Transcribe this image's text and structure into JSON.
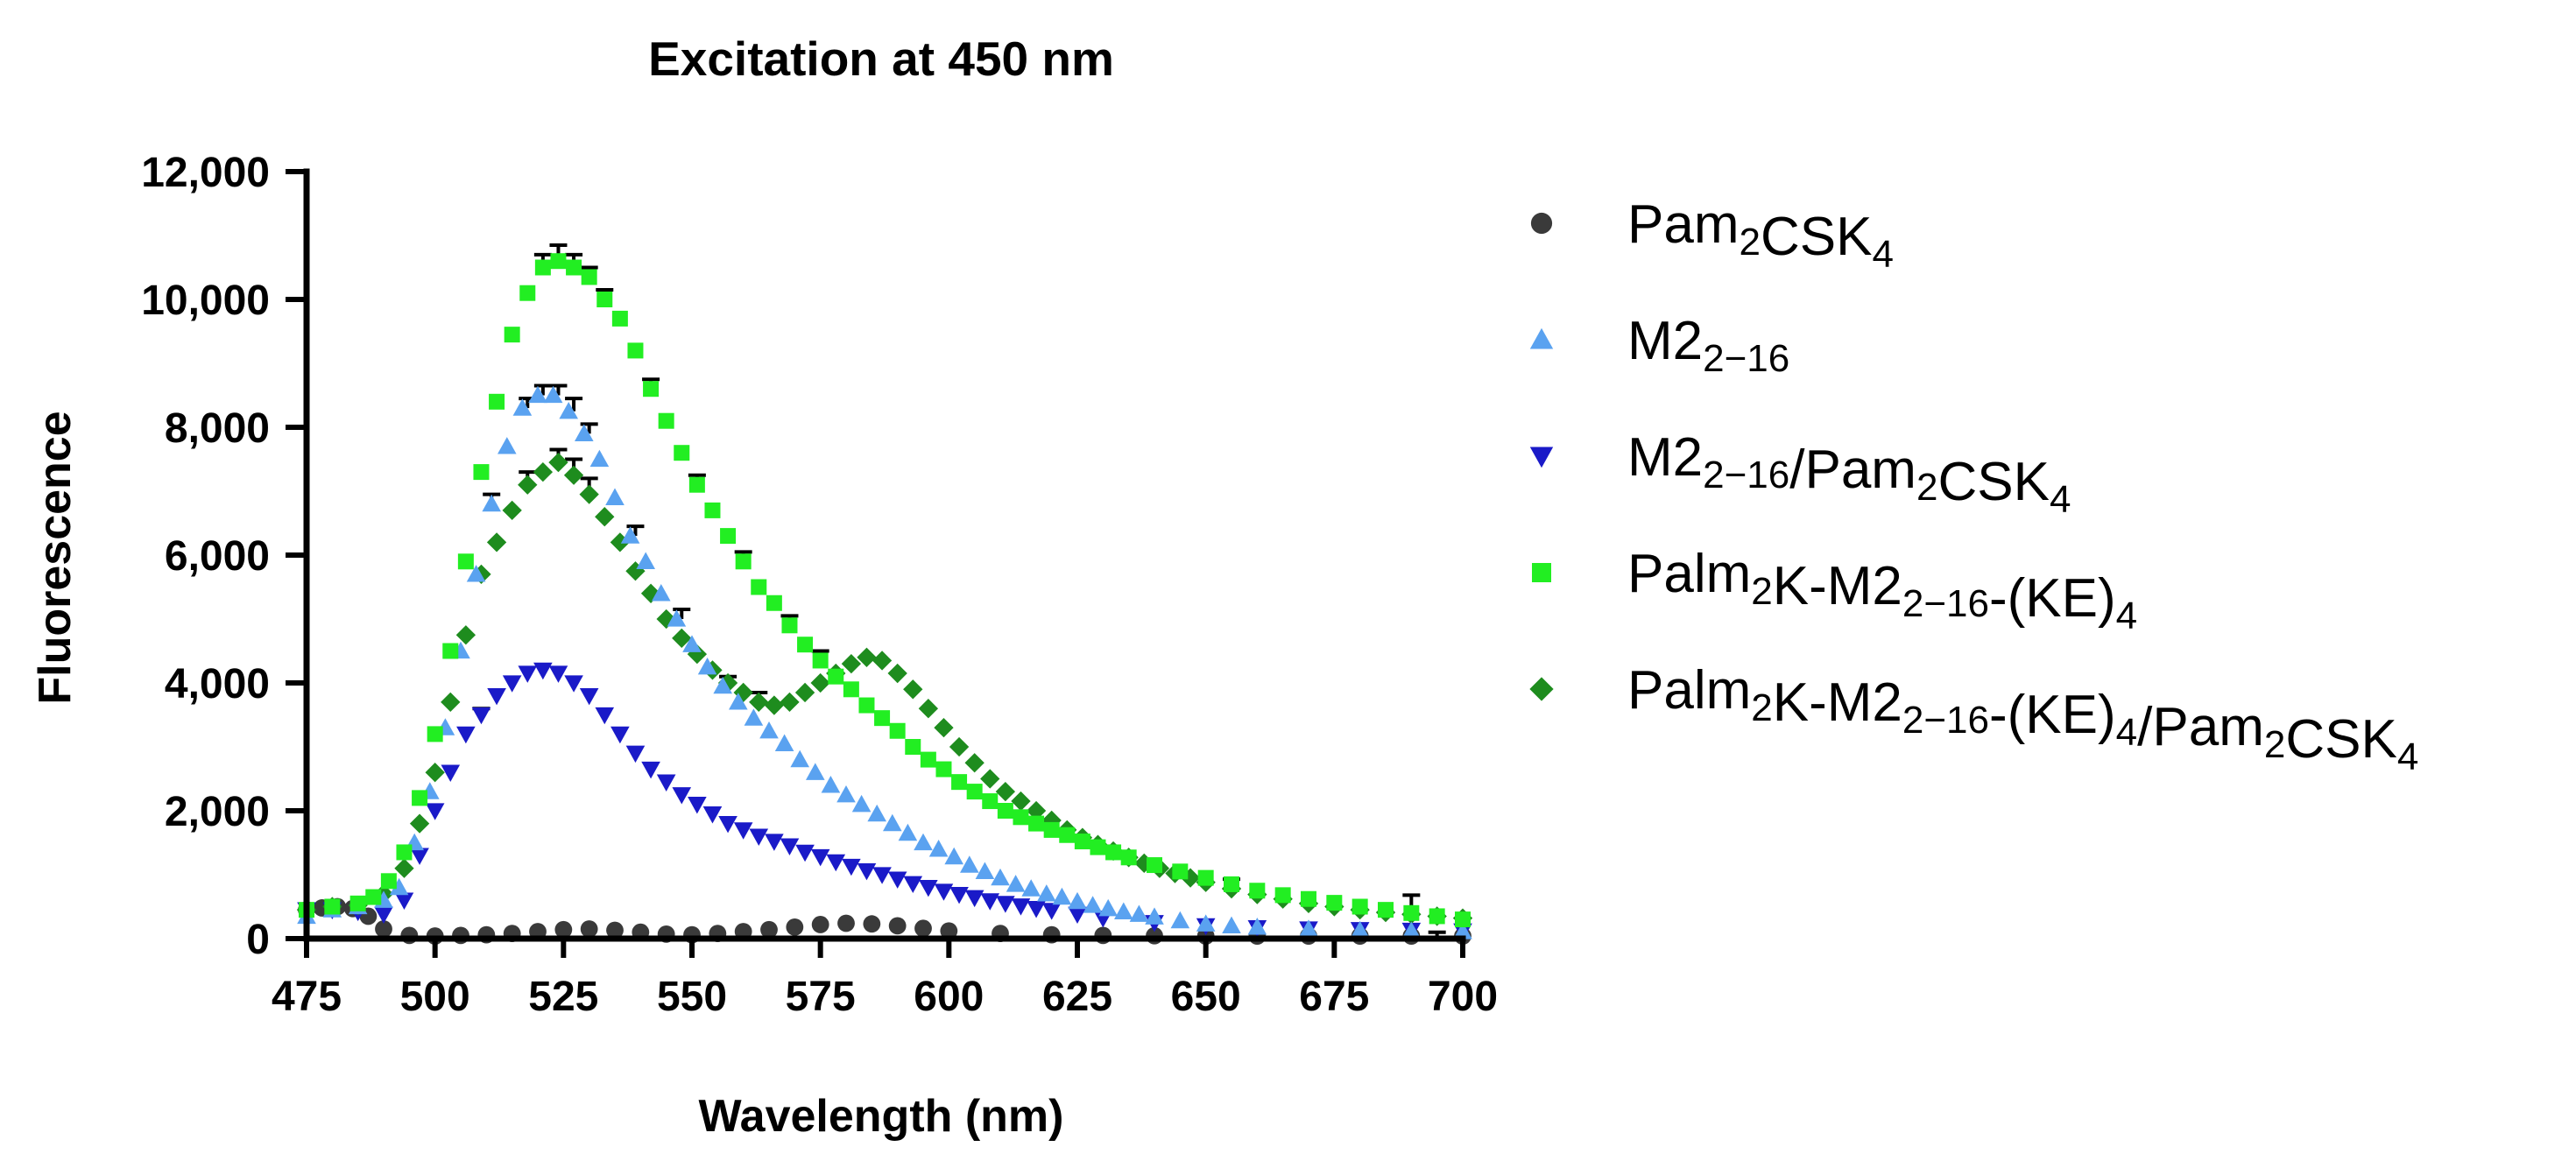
{
  "chart_data": {
    "type": "scatter",
    "title": "Excitation at 450 nm",
    "xlabel": "Wavelength (nm)",
    "ylabel": "Fluorescence",
    "xlim": [
      475,
      700
    ],
    "ylim": [
      0,
      12000
    ],
    "x_ticks": [
      475,
      500,
      525,
      550,
      575,
      600,
      625,
      650,
      675,
      700
    ],
    "y_ticks": [
      0,
      2000,
      4000,
      6000,
      8000,
      10000,
      12000
    ],
    "x_tick_labels": [
      "475",
      "500",
      "525",
      "550",
      "575",
      "600",
      "625",
      "650",
      "675",
      "700"
    ],
    "y_tick_labels": [
      "0",
      "2,000",
      "4,000",
      "6,000",
      "8,000",
      "10,000",
      "12,000"
    ],
    "grid": false,
    "legend_position": "right",
    "series": [
      {
        "name": "Pam2CSK4",
        "legend_parts": [
          {
            "t": "Pam"
          },
          {
            "t": "2",
            "sub": true
          },
          {
            "t": "CSK"
          },
          {
            "t": "4",
            "sub": true
          }
        ],
        "color": "#3a3a3a",
        "marker": "circle",
        "x": [
          475,
          478,
          481,
          484,
          487,
          490,
          495,
          500,
          505,
          510,
          515,
          520,
          525,
          530,
          535,
          540,
          545,
          550,
          555,
          560,
          565,
          570,
          575,
          580,
          585,
          590,
          595,
          600,
          610,
          620,
          630,
          640,
          650,
          660,
          670,
          680,
          690,
          700
        ],
        "y": [
          450,
          480,
          500,
          470,
          350,
          150,
          50,
          40,
          50,
          60,
          80,
          110,
          140,
          150,
          130,
          100,
          70,
          60,
          80,
          110,
          140,
          180,
          220,
          240,
          230,
          200,
          160,
          120,
          80,
          60,
          50,
          45,
          40,
          40,
          40,
          40,
          40,
          40
        ]
      },
      {
        "name": "M22-16",
        "legend_parts": [
          {
            "t": "M2"
          },
          {
            "t": "2−16",
            "sub": true
          }
        ],
        "color": "#5aa2f0",
        "marker": "triangle-up",
        "x": [
          475,
          480,
          485,
          490,
          493,
          496,
          499,
          502,
          505,
          508,
          511,
          514,
          517,
          520,
          523,
          526,
          529,
          532,
          535,
          538,
          541,
          544,
          547,
          550,
          553,
          556,
          559,
          562,
          565,
          568,
          571,
          574,
          577,
          580,
          583,
          586,
          589,
          592,
          595,
          598,
          601,
          604,
          607,
          610,
          613,
          616,
          619,
          622,
          625,
          628,
          631,
          634,
          637,
          640,
          645,
          650,
          655,
          660,
          670,
          680,
          690,
          700
        ],
        "y": [
          350,
          450,
          500,
          600,
          800,
          1500,
          2300,
          3300,
          4500,
          5700,
          6800,
          7700,
          8300,
          8500,
          8500,
          8250,
          7900,
          7500,
          6900,
          6300,
          5900,
          5400,
          5000,
          4600,
          4250,
          3950,
          3700,
          3450,
          3250,
          3050,
          2800,
          2600,
          2400,
          2250,
          2100,
          1950,
          1800,
          1650,
          1500,
          1400,
          1280,
          1150,
          1050,
          950,
          850,
          780,
          700,
          650,
          580,
          520,
          470,
          420,
          380,
          340,
          280,
          230,
          200,
          180,
          150,
          130,
          120,
          110
        ]
      },
      {
        "name": "M22-16/Pam2CSK4",
        "legend_parts": [
          {
            "t": "M2"
          },
          {
            "t": "2−16",
            "sub": true
          },
          {
            "t": "/Pam"
          },
          {
            "t": "2",
            "sub": true
          },
          {
            "t": "CSK"
          },
          {
            "t": "4",
            "sub": true
          }
        ],
        "color": "#1a1ac8",
        "marker": "triangle-down",
        "x": [
          475,
          480,
          485,
          490,
          494,
          497,
          500,
          503,
          506,
          509,
          512,
          515,
          518,
          521,
          524,
          527,
          530,
          533,
          536,
          539,
          542,
          545,
          548,
          551,
          554,
          557,
          560,
          563,
          566,
          569,
          572,
          575,
          578,
          581,
          584,
          587,
          590,
          593,
          596,
          599,
          602,
          605,
          608,
          611,
          614,
          617,
          620,
          625,
          630,
          640,
          650,
          660,
          670,
          680,
          690,
          700
        ],
        "y": [
          450,
          450,
          420,
          380,
          600,
          1300,
          2000,
          2600,
          3200,
          3500,
          3800,
          4000,
          4150,
          4200,
          4150,
          4000,
          3800,
          3500,
          3200,
          2900,
          2650,
          2450,
          2250,
          2100,
          1950,
          1800,
          1700,
          1600,
          1520,
          1450,
          1350,
          1280,
          1200,
          1130,
          1060,
          1000,
          930,
          860,
          800,
          740,
          690,
          640,
          590,
          550,
          510,
          470,
          440,
          380,
          320,
          250,
          200,
          170,
          150,
          140,
          130,
          120
        ]
      },
      {
        "name": "Palm2K-M22-16-(KE)4",
        "legend_parts": [
          {
            "t": "Palm"
          },
          {
            "t": "2",
            "sub": true
          },
          {
            "t": "K-M2"
          },
          {
            "t": "2−16",
            "sub": true
          },
          {
            "t": "-(KE)"
          },
          {
            "t": "4",
            "sub": true
          }
        ],
        "color": "#22ee22",
        "marker": "square",
        "x": [
          475,
          480,
          485,
          488,
          491,
          494,
          497,
          500,
          503,
          506,
          509,
          512,
          515,
          518,
          521,
          524,
          527,
          530,
          533,
          536,
          539,
          542,
          545,
          548,
          551,
          554,
          557,
          560,
          563,
          566,
          569,
          572,
          575,
          578,
          581,
          584,
          587,
          590,
          593,
          596,
          599,
          602,
          605,
          608,
          611,
          614,
          617,
          620,
          623,
          626,
          629,
          632,
          635,
          640,
          645,
          650,
          655,
          660,
          665,
          670,
          675,
          680,
          685,
          690,
          695,
          700
        ],
        "y": [
          450,
          500,
          550,
          650,
          900,
          1350,
          2200,
          3200,
          4500,
          5900,
          7300,
          8400,
          9450,
          10100,
          10500,
          10600,
          10500,
          10350,
          10000,
          9700,
          9200,
          8600,
          8100,
          7600,
          7100,
          6700,
          6300,
          5900,
          5500,
          5250,
          4900,
          4600,
          4350,
          4100,
          3900,
          3650,
          3450,
          3250,
          3000,
          2800,
          2650,
          2450,
          2300,
          2150,
          2000,
          1900,
          1800,
          1700,
          1620,
          1520,
          1430,
          1350,
          1270,
          1150,
          1050,
          950,
          850,
          750,
          680,
          620,
          560,
          500,
          450,
          400,
          350,
          300
        ]
      },
      {
        "name": "Palm2K-M22-16-(KE)4/Pam2CSK4",
        "legend_parts": [
          {
            "t": "Palm"
          },
          {
            "t": "2",
            "sub": true
          },
          {
            "t": "K-M2"
          },
          {
            "t": "2−16",
            "sub": true
          },
          {
            "t": "-(KE)"
          },
          {
            "t": "4",
            "sub": true
          },
          {
            "t": "/Pam"
          },
          {
            "t": "2",
            "sub": true
          },
          {
            "t": "CSK"
          },
          {
            "t": "4",
            "sub": true
          }
        ],
        "color": "#1e8c1e",
        "marker": "diamond",
        "x": [
          475,
          480,
          485,
          490,
          494,
          497,
          500,
          503,
          506,
          509,
          512,
          515,
          518,
          521,
          524,
          527,
          530,
          533,
          536,
          539,
          542,
          545,
          548,
          551,
          554,
          557,
          560,
          563,
          566,
          569,
          572,
          575,
          578,
          581,
          584,
          587,
          590,
          593,
          596,
          599,
          602,
          605,
          608,
          611,
          614,
          617,
          620,
          623,
          626,
          629,
          632,
          635,
          638,
          641,
          644,
          647,
          650,
          655,
          660,
          665,
          670,
          675,
          680,
          685,
          690,
          695,
          700
        ],
        "y": [
          450,
          500,
          520,
          700,
          1100,
          1800,
          2600,
          3700,
          4750,
          5700,
          6200,
          6700,
          7100,
          7300,
          7450,
          7250,
          6950,
          6600,
          6200,
          5750,
          5400,
          5000,
          4700,
          4450,
          4200,
          4000,
          3850,
          3700,
          3650,
          3700,
          3850,
          4000,
          4150,
          4300,
          4400,
          4350,
          4150,
          3900,
          3600,
          3300,
          3000,
          2750,
          2500,
          2300,
          2150,
          2000,
          1850,
          1700,
          1580,
          1470,
          1370,
          1270,
          1180,
          1100,
          1020,
          950,
          880,
          780,
          690,
          620,
          550,
          500,
          450,
          410,
          380,
          350,
          320
        ]
      }
    ],
    "error_bars": [
      {
        "series": 3,
        "x": 521,
        "y": 10500,
        "err": 200
      },
      {
        "series": 3,
        "x": 524,
        "y": 10600,
        "err": 250
      },
      {
        "series": 3,
        "x": 527,
        "y": 10500,
        "err": 200
      },
      {
        "series": 3,
        "x": 530,
        "y": 10350,
        "err": 150
      },
      {
        "series": 3,
        "x": 533,
        "y": 10000,
        "err": 150
      },
      {
        "series": 3,
        "x": 542,
        "y": 8600,
        "err": 150
      },
      {
        "series": 3,
        "x": 551,
        "y": 7100,
        "err": 150
      },
      {
        "series": 3,
        "x": 560,
        "y": 5900,
        "err": 150
      },
      {
        "series": 3,
        "x": 569,
        "y": 4900,
        "err": 150
      },
      {
        "series": 3,
        "x": 575,
        "y": 4350,
        "err": 150
      },
      {
        "series": 1,
        "x": 518,
        "y": 8300,
        "err": 150
      },
      {
        "series": 1,
        "x": 521,
        "y": 8500,
        "err": 150
      },
      {
        "series": 1,
        "x": 524,
        "y": 8500,
        "err": 150
      },
      {
        "series": 1,
        "x": 527,
        "y": 8250,
        "err": 200
      },
      {
        "series": 1,
        "x": 530,
        "y": 7900,
        "err": 150
      },
      {
        "series": 1,
        "x": 539,
        "y": 6300,
        "err": 150
      },
      {
        "series": 1,
        "x": 548,
        "y": 5000,
        "err": 150
      },
      {
        "series": 1,
        "x": 557,
        "y": 3950,
        "err": 150
      },
      {
        "series": 1,
        "x": 511,
        "y": 6800,
        "err": 150
      },
      {
        "series": 4,
        "x": 518,
        "y": 7100,
        "err": 200
      },
      {
        "series": 4,
        "x": 524,
        "y": 7450,
        "err": 200
      },
      {
        "series": 4,
        "x": 527,
        "y": 7250,
        "err": 250
      },
      {
        "series": 4,
        "x": 530,
        "y": 6950,
        "err": 250
      },
      {
        "series": 4,
        "x": 563,
        "y": 3700,
        "err": 150
      },
      {
        "series": 4,
        "x": 655,
        "y": 780,
        "err": 150
      },
      {
        "series": 4,
        "x": 690,
        "y": 380,
        "err": 300
      },
      {
        "series": 2,
        "x": 509,
        "y": 3500,
        "err": 100
      },
      {
        "series": 0,
        "x": 695,
        "y": 40,
        "err": 60
      }
    ]
  }
}
